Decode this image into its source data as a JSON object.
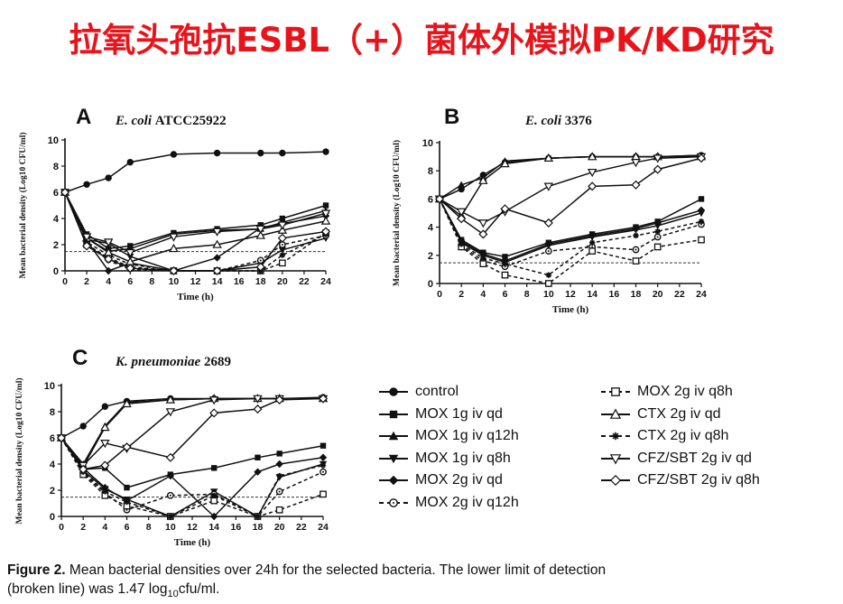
{
  "slide": {
    "title": "拉氧头孢抗ESBL（+）菌体外模拟PK/KD研究"
  },
  "figure": {
    "caption_label": "Figure 2.",
    "caption_text": "Mean bacterial densities over 24h for the selected  bacteria. The lower limit of detection",
    "caption_line2_pre": "(broken line) was 1.47 log",
    "caption_line2_sub": "10",
    "caption_line2_post": "cfu/ml."
  },
  "legend": [
    {
      "label": "control",
      "marker": "filled-circle",
      "line": "solid"
    },
    {
      "label": "MOX 1g iv qd",
      "marker": "filled-square",
      "line": "solid"
    },
    {
      "label": "MOX 1g iv q12h",
      "marker": "filled-triangle-up",
      "line": "solid"
    },
    {
      "label": "MOX 1g iv q8h",
      "marker": "filled-triangle-down",
      "line": "solid"
    },
    {
      "label": "MOX 2g iv qd",
      "marker": "filled-diamond",
      "line": "solid"
    },
    {
      "label": "MOX 2g iv q12h",
      "marker": "open-circle-dot",
      "line": "dashed"
    },
    {
      "label": "MOX 2g iv q8h",
      "marker": "open-square",
      "line": "dashed"
    },
    {
      "label": "CTX 2g iv qd",
      "marker": "open-triangle-up",
      "line": "solid"
    },
    {
      "label": "CTX 2g iv q8h",
      "marker": "star",
      "line": "dashed"
    },
    {
      "label": "CFZ/SBT 2g iv qd",
      "marker": "open-triangle-down",
      "line": "solid"
    },
    {
      "label": "CFZ/SBT 2g iv q8h",
      "marker": "open-diamond",
      "line": "solid"
    }
  ],
  "chart_data": [
    {
      "type": "line",
      "panel_letter": "A",
      "organism": "E. coli",
      "strain": "ATCC25922",
      "xlabel": "Time (h)",
      "ylabel": "Mean bacterial density (Log10 CFU/ml)",
      "xlim": [
        0,
        24
      ],
      "ylim": [
        0,
        10
      ],
      "x_ticks": [
        0,
        2,
        4,
        6,
        8,
        10,
        12,
        14,
        16,
        18,
        20,
        22,
        24
      ],
      "y_ticks": [
        0,
        2,
        4,
        6,
        8,
        10
      ],
      "detection_limit": 1.47,
      "series": [
        {
          "name": "control",
          "x": [
            0,
            2,
            4,
            6,
            10,
            14,
            18,
            20,
            24
          ],
          "y": [
            6.0,
            6.6,
            7.1,
            8.3,
            8.9,
            9.0,
            9.0,
            9.0,
            9.1
          ]
        },
        {
          "name": "MOX 1g iv qd",
          "x": [
            0,
            2,
            4,
            6,
            10,
            14,
            18,
            20,
            24
          ],
          "y": [
            6.0,
            2.8,
            1.7,
            1.9,
            2.9,
            3.2,
            3.5,
            4.0,
            5.0
          ]
        },
        {
          "name": "MOX 1g iv q12h",
          "x": [
            0,
            2,
            4,
            6,
            10,
            14,
            18,
            20,
            24
          ],
          "y": [
            6.0,
            2.5,
            1.5,
            1.7,
            2.8,
            3.1,
            3.2,
            3.7,
            4.6
          ]
        },
        {
          "name": "MOX 1g iv q8h",
          "x": [
            0,
            2,
            4,
            6,
            10,
            14,
            18,
            20,
            24
          ],
          "y": [
            6.0,
            2.4,
            2.1,
            1.1,
            0.0,
            0.0,
            0.6,
            1.6,
            2.5
          ]
        },
        {
          "name": "MOX 2g iv qd",
          "x": [
            0,
            2,
            4,
            6,
            10,
            14,
            18,
            20,
            24
          ],
          "y": [
            6.0,
            2.3,
            0.0,
            0.6,
            0.0,
            1.0,
            3.3,
            3.6,
            4.2
          ]
        },
        {
          "name": "MOX 2g iv q12h",
          "x": [
            0,
            2,
            4,
            6,
            10,
            14,
            18,
            20,
            24
          ],
          "y": [
            6.0,
            2.2,
            1.2,
            0.5,
            0.0,
            0.0,
            0.8,
            2.0,
            2.7
          ]
        },
        {
          "name": "MOX 2g iv q8h",
          "x": [
            0,
            2,
            4,
            6,
            10,
            14,
            18,
            20,
            24
          ],
          "y": [
            6.0,
            2.0,
            1.0,
            0.3,
            0.0,
            0.0,
            0.0,
            0.6,
            2.9
          ]
        },
        {
          "name": "CTX 2g iv qd",
          "x": [
            0,
            2,
            4,
            6,
            10,
            14,
            18,
            20,
            24
          ],
          "y": [
            6.0,
            2.5,
            1.4,
            0.7,
            1.7,
            2.0,
            2.7,
            3.1,
            3.8
          ]
        },
        {
          "name": "CTX 2g iv q8h",
          "x": [
            0,
            2,
            4,
            6,
            10,
            14,
            18,
            20,
            24
          ],
          "y": [
            6.0,
            2.1,
            0.8,
            0.1,
            0.0,
            0.0,
            0.0,
            1.2,
            2.8
          ]
        },
        {
          "name": "CFZ/SBT 2g iv qd",
          "x": [
            0,
            2,
            4,
            6,
            10,
            14,
            18,
            20,
            24
          ],
          "y": [
            6.0,
            2.6,
            2.2,
            1.4,
            2.6,
            3.0,
            3.2,
            3.5,
            4.4
          ]
        },
        {
          "name": "CFZ/SBT 2g iv q8h",
          "x": [
            0,
            2,
            4,
            6,
            10,
            14,
            18,
            20,
            24
          ],
          "y": [
            6.0,
            1.9,
            0.9,
            0.2,
            0.0,
            0.0,
            0.3,
            2.5,
            3.0
          ]
        }
      ]
    },
    {
      "type": "line",
      "panel_letter": "B",
      "organism": "E. coli",
      "strain": "3376",
      "xlabel": "Time (h)",
      "ylabel": "Mean bacterial density (Log10 CFU/ml)",
      "xlim": [
        0,
        24
      ],
      "ylim": [
        0,
        10
      ],
      "x_ticks": [
        0,
        2,
        4,
        6,
        8,
        10,
        12,
        14,
        16,
        18,
        20,
        22,
        24
      ],
      "y_ticks": [
        0,
        2,
        4,
        6,
        8,
        10
      ],
      "detection_limit": 1.47,
      "series": [
        {
          "name": "control",
          "x": [
            0,
            2,
            4,
            6,
            10,
            14,
            18,
            20,
            24
          ],
          "y": [
            6.0,
            6.7,
            7.7,
            8.6,
            8.9,
            9.0,
            9.0,
            9.0,
            9.1
          ]
        },
        {
          "name": "MOX 1g iv qd",
          "x": [
            0,
            2,
            4,
            6,
            10,
            14,
            18,
            20,
            24
          ],
          "y": [
            6.0,
            3.1,
            2.2,
            1.9,
            2.9,
            3.5,
            4.0,
            4.4,
            6.0
          ]
        },
        {
          "name": "MOX 1g iv q12h",
          "x": [
            0,
            2,
            4,
            6,
            10,
            14,
            18,
            20,
            24
          ],
          "y": [
            6.0,
            7.0,
            7.5,
            8.7,
            8.9,
            9.0,
            9.0,
            9.0,
            9.1
          ]
        },
        {
          "name": "MOX 1g iv q8h",
          "x": [
            0,
            2,
            4,
            6,
            10,
            14,
            18,
            20,
            24
          ],
          "y": [
            6.0,
            2.9,
            2.0,
            1.5,
            2.7,
            3.3,
            3.8,
            4.1,
            5.0
          ]
        },
        {
          "name": "MOX 2g iv qd",
          "x": [
            0,
            2,
            4,
            6,
            10,
            14,
            18,
            20,
            24
          ],
          "y": [
            6.0,
            3.0,
            2.1,
            1.6,
            2.8,
            3.4,
            3.9,
            4.3,
            5.2
          ]
        },
        {
          "name": "MOX 2g iv q12h",
          "x": [
            0,
            2,
            4,
            6,
            10,
            14,
            18,
            20,
            24
          ],
          "y": [
            6.0,
            2.7,
            1.6,
            1.2,
            2.3,
            2.6,
            2.4,
            3.3,
            4.2
          ]
        },
        {
          "name": "MOX 2g iv q8h",
          "x": [
            0,
            2,
            4,
            6,
            10,
            14,
            18,
            20,
            24
          ],
          "y": [
            6.0,
            2.6,
            1.4,
            0.6,
            0.0,
            2.3,
            1.6,
            2.6,
            3.1
          ]
        },
        {
          "name": "CTX 2g iv qd",
          "x": [
            0,
            2,
            4,
            6,
            10,
            14,
            18,
            20,
            24
          ],
          "y": [
            6.0,
            4.8,
            7.3,
            8.5,
            8.9,
            9.0,
            9.0,
            9.0,
            9.0
          ]
        },
        {
          "name": "CTX 2g iv q8h",
          "x": [
            0,
            2,
            4,
            6,
            10,
            14,
            18,
            20,
            24
          ],
          "y": [
            6.0,
            2.8,
            1.8,
            1.4,
            0.6,
            2.9,
            3.4,
            3.7,
            4.4
          ]
        },
        {
          "name": "CFZ/SBT 2g iv qd",
          "x": [
            0,
            2,
            4,
            6,
            10,
            14,
            18,
            20,
            24
          ],
          "y": [
            6.0,
            5.1,
            4.3,
            5.1,
            6.9,
            7.9,
            8.6,
            8.9,
            9.0
          ]
        },
        {
          "name": "CFZ/SBT 2g iv q8h",
          "x": [
            0,
            2,
            4,
            6,
            10,
            14,
            18,
            20,
            24
          ],
          "y": [
            6.0,
            4.6,
            3.5,
            5.3,
            4.3,
            6.9,
            7.0,
            8.1,
            8.9
          ]
        }
      ]
    },
    {
      "type": "line",
      "panel_letter": "C",
      "organism": "K. pneumoniae",
      "strain": "2689",
      "xlabel": "Time (h)",
      "ylabel": "Mean bacterial density (Log10 CFU/ml)",
      "xlim": [
        0,
        24
      ],
      "ylim": [
        0,
        10
      ],
      "x_ticks": [
        0,
        2,
        4,
        6,
        8,
        10,
        12,
        14,
        16,
        18,
        20,
        22,
        24
      ],
      "y_ticks": [
        0,
        2,
        4,
        6,
        8,
        10
      ],
      "detection_limit": 1.47,
      "series": [
        {
          "name": "control",
          "x": [
            0,
            2,
            4,
            6,
            10,
            14,
            18,
            20,
            24
          ],
          "y": [
            6.0,
            6.9,
            8.4,
            8.8,
            9.0,
            9.0,
            9.0,
            9.0,
            9.1
          ]
        },
        {
          "name": "MOX 1g iv qd",
          "x": [
            0,
            2,
            4,
            6,
            10,
            14,
            18,
            20,
            24
          ],
          "y": [
            6.0,
            3.6,
            3.7,
            2.2,
            3.2,
            3.7,
            4.5,
            4.8,
            5.4
          ]
        },
        {
          "name": "MOX 1g iv q12h",
          "x": [
            0,
            2,
            4,
            6,
            10,
            14,
            18,
            20,
            24
          ],
          "y": [
            6.0,
            4.0,
            6.9,
            8.7,
            8.9,
            9.0,
            9.0,
            9.0,
            9.0
          ]
        },
        {
          "name": "MOX 1g iv q8h",
          "x": [
            0,
            2,
            4,
            6,
            10,
            14,
            18,
            20,
            24
          ],
          "y": [
            6.0,
            3.5,
            2.1,
            1.3,
            0.0,
            1.9,
            0.0,
            3.0,
            4.0
          ]
        },
        {
          "name": "MOX 2g iv qd",
          "x": [
            0,
            2,
            4,
            6,
            10,
            14,
            18,
            20,
            24
          ],
          "y": [
            6.0,
            3.7,
            2.2,
            1.2,
            3.1,
            0.0,
            3.4,
            4.0,
            4.5
          ]
        },
        {
          "name": "MOX 2g iv q12h",
          "x": [
            0,
            2,
            4,
            6,
            10,
            14,
            18,
            20,
            24
          ],
          "y": [
            6.0,
            3.3,
            1.8,
            0.5,
            1.6,
            1.7,
            0.0,
            1.9,
            3.4
          ]
        },
        {
          "name": "MOX 2g iv q8h",
          "x": [
            0,
            2,
            4,
            6,
            10,
            14,
            18,
            20,
            24
          ],
          "y": [
            6.0,
            3.2,
            1.6,
            0.8,
            0.0,
            1.2,
            0.0,
            0.5,
            1.7
          ]
        },
        {
          "name": "CTX 2g iv qd",
          "x": [
            0,
            2,
            4,
            6,
            10,
            14,
            18,
            20,
            24
          ],
          "y": [
            6.0,
            3.8,
            6.8,
            8.6,
            8.9,
            9.0,
            9.0,
            9.0,
            9.0
          ]
        },
        {
          "name": "CTX 2g iv q8h",
          "x": [
            0,
            2,
            4,
            6,
            10,
            14,
            18,
            20,
            24
          ],
          "y": [
            6.0,
            3.4,
            1.9,
            1.1,
            0.0,
            1.6,
            0.0,
            3.1,
            3.9
          ]
        },
        {
          "name": "CFZ/SBT 2g iv qd",
          "x": [
            0,
            2,
            4,
            6,
            10,
            14,
            18,
            20,
            24
          ],
          "y": [
            6.0,
            3.9,
            5.6,
            5.2,
            8.0,
            8.9,
            9.0,
            9.0,
            9.0
          ]
        },
        {
          "name": "CFZ/SBT 2g iv q8h",
          "x": [
            0,
            2,
            4,
            6,
            10,
            14,
            18,
            20,
            24
          ],
          "y": [
            6.0,
            3.6,
            3.9,
            5.3,
            4.5,
            7.9,
            8.2,
            8.9,
            9.0
          ]
        }
      ]
    }
  ]
}
